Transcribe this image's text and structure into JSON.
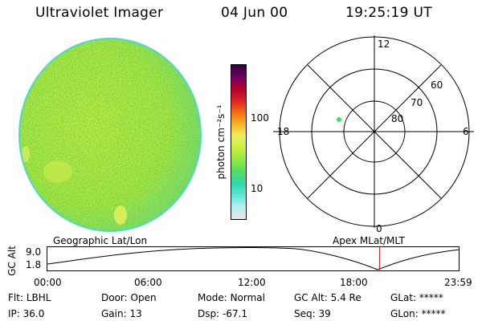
{
  "header": {
    "instrument": "Ultraviolet Imager",
    "date": "04 Jun 00",
    "time": "19:25:19 UT"
  },
  "colorbar": {
    "label": "photon cm⁻²s⁻¹",
    "tick_100": "100",
    "tick_10": "10",
    "colors": [
      "#e8e8e8",
      "#b8f0f0",
      "#60e8d8",
      "#30d8b0",
      "#50e060",
      "#90e840",
      "#c8f040",
      "#f0f060",
      "#f8b020",
      "#f07010",
      "#e02020",
      "#b00030",
      "#700060",
      "#300040"
    ]
  },
  "polar": {
    "mlt_labels": {
      "top": "12",
      "left": "18",
      "right": "6",
      "bottom": "0"
    },
    "lat_labels": {
      "l60": "60",
      "l70": "70",
      "l80": "80"
    },
    "spot_color": "#40e060"
  },
  "timeline": {
    "left_label": "Geographic Lat/Lon",
    "right_label": "Apex MLat/MLT",
    "y_axis_label": "GC Alt",
    "y_top": "9.0",
    "y_bottom": "1.8",
    "ticks": [
      "00:00",
      "06:00",
      "12:00",
      "18:00",
      "23:59"
    ],
    "current_time_hours": 19.42,
    "marker_color": "#cc2020"
  },
  "status": {
    "flt_label": "Flt:",
    "flt_value": "LBHL",
    "ip_label": "IP:",
    "ip_value": "36.0",
    "door_label": "Door:",
    "door_value": "Open",
    "gain_label": "Gain:",
    "gain_value": "13",
    "mode_label": "Mode:",
    "mode_value": "Normal",
    "dsp_label": "Dsp:",
    "dsp_value": "-67.1",
    "gcalt_label": "GC Alt:",
    "gcalt_value": "5.4 Re",
    "seq_label": "Seq:",
    "seq_value": "39",
    "glat_label": "GLat:",
    "glat_value": "*****",
    "glon_label": "GLon:",
    "glon_value": "*****"
  }
}
